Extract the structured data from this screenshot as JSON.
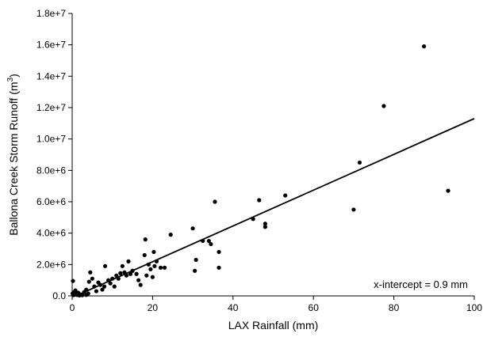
{
  "chart_data": {
    "type": "scatter",
    "xlabel": "LAX Rainfall (mm)",
    "ylabel_main": "Ballona Creek Storm Runoff (m",
    "ylabel_sup": "3",
    "ylabel_close": ")",
    "xlim": [
      0,
      100
    ],
    "ylim": [
      0,
      18000000
    ],
    "x_ticks": [
      0,
      20,
      40,
      60,
      80,
      100
    ],
    "x_tick_labels": [
      "0",
      "20",
      "40",
      "60",
      "80",
      "100"
    ],
    "y_ticks": [
      0,
      2000000,
      4000000,
      6000000,
      8000000,
      10000000,
      12000000,
      14000000,
      16000000,
      18000000
    ],
    "y_tick_labels": [
      "0.0",
      "2.0e+6",
      "4.0e+6",
      "6.0e+6",
      "8.0e+6",
      "1.0e+7",
      "1.2e+7",
      "1.4e+7",
      "1.6e+7",
      "1.8e+7"
    ],
    "grid": false,
    "annotation": "x-intercept = 0.9 mm",
    "fit_line": {
      "x": [
        0.9,
        100
      ],
      "y": [
        0,
        11300000
      ]
    },
    "points": [
      [
        0.1,
        150000
      ],
      [
        0.2,
        950000
      ],
      [
        0.3,
        50000
      ],
      [
        0.5,
        250000
      ],
      [
        0.6,
        80000
      ],
      [
        0.8,
        350000
      ],
      [
        1.0,
        120000
      ],
      [
        1.2,
        60000
      ],
      [
        1.5,
        200000
      ],
      [
        1.8,
        30000
      ],
      [
        2.0,
        90000
      ],
      [
        2.5,
        40000
      ],
      [
        3.0,
        250000
      ],
      [
        3.5,
        400000
      ],
      [
        3.5,
        60000
      ],
      [
        4.0,
        150000
      ],
      [
        4.2,
        900000
      ],
      [
        4.5,
        1500000
      ],
      [
        5.0,
        1100000
      ],
      [
        5.5,
        600000
      ],
      [
        6.0,
        300000
      ],
      [
        6.5,
        850000
      ],
      [
        7.0,
        700000
      ],
      [
        7.5,
        400000
      ],
      [
        8.0,
        600000
      ],
      [
        8.2,
        1900000
      ],
      [
        9.0,
        1000000
      ],
      [
        9.5,
        800000
      ],
      [
        10.0,
        1100000
      ],
      [
        10.5,
        600000
      ],
      [
        11.0,
        1300000
      ],
      [
        11.5,
        1100000
      ],
      [
        12.0,
        1450000
      ],
      [
        12.5,
        1900000
      ],
      [
        13.0,
        1500000
      ],
      [
        13.5,
        1300000
      ],
      [
        14.0,
        2200000
      ],
      [
        14.5,
        1400000
      ],
      [
        15.0,
        1600000
      ],
      [
        16.0,
        1400000
      ],
      [
        16.5,
        1000000
      ],
      [
        17.0,
        700000
      ],
      [
        18.0,
        2600000
      ],
      [
        18.2,
        3600000
      ],
      [
        18.5,
        1300000
      ],
      [
        19.0,
        2000000
      ],
      [
        19.5,
        1700000
      ],
      [
        20.0,
        1200000
      ],
      [
        20.3,
        2800000
      ],
      [
        20.5,
        1900000
      ],
      [
        21.0,
        2200000
      ],
      [
        22.0,
        1800000
      ],
      [
        23.0,
        1800000
      ],
      [
        24.5,
        3900000
      ],
      [
        30.0,
        4300000
      ],
      [
        30.5,
        1600000
      ],
      [
        30.8,
        2300000
      ],
      [
        32.5,
        3500000
      ],
      [
        34.0,
        3500000
      ],
      [
        34.5,
        3300000
      ],
      [
        35.5,
        6000000
      ],
      [
        36.5,
        2800000
      ],
      [
        36.5,
        1800000
      ],
      [
        45.0,
        4900000
      ],
      [
        46.5,
        6100000
      ],
      [
        48.0,
        4400000
      ],
      [
        48.0,
        4600000
      ],
      [
        53.0,
        6400000
      ],
      [
        70.0,
        5500000
      ],
      [
        71.5,
        8500000
      ],
      [
        77.5,
        12100000
      ],
      [
        87.5,
        15900000
      ],
      [
        93.5,
        6700000
      ]
    ]
  }
}
